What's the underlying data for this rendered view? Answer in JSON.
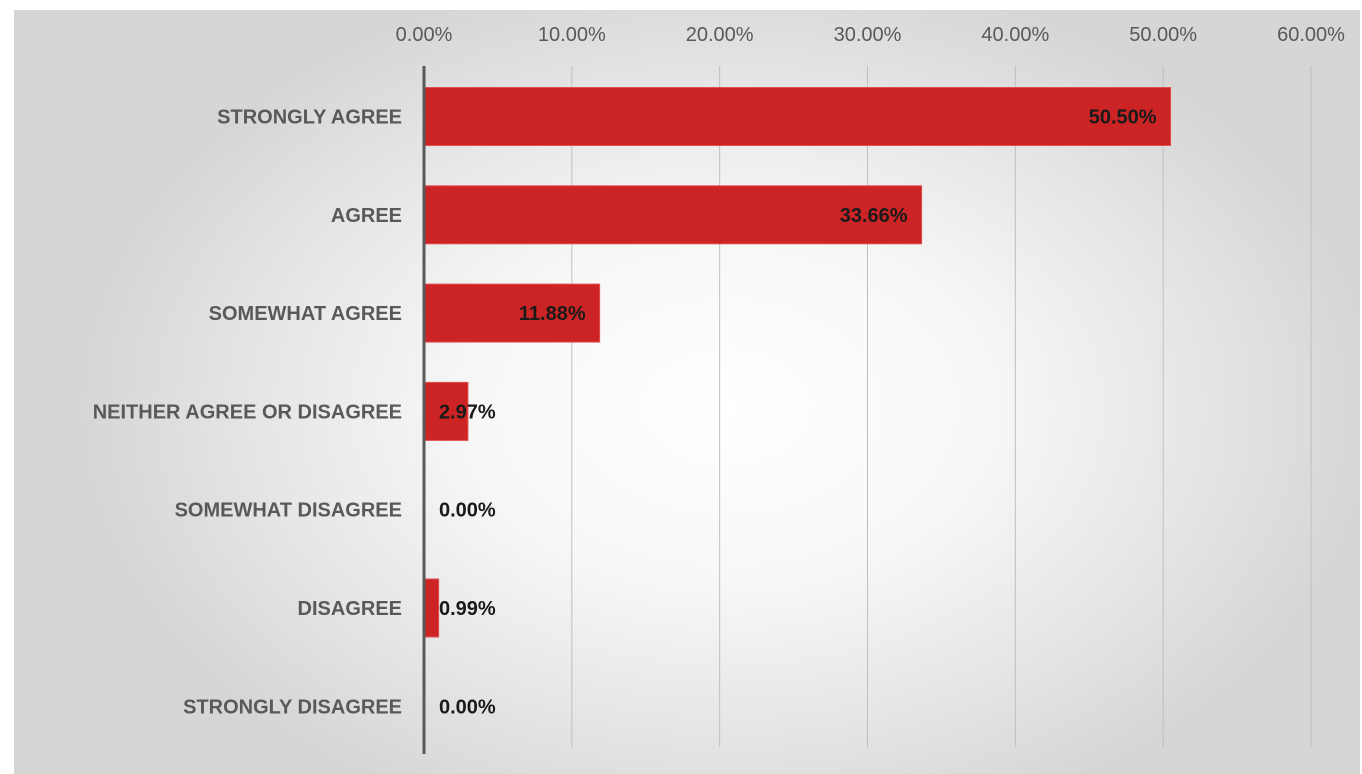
{
  "chart_data": {
    "type": "bar",
    "orientation": "horizontal",
    "categories": [
      "STRONGLY AGREE",
      "AGREE",
      "SOMEWHAT AGREE",
      "NEITHER AGREE OR DISAGREE",
      "SOMEWHAT DISAGREE",
      "DISAGREE",
      "STRONGLY DISAGREE"
    ],
    "values": [
      50.5,
      33.66,
      11.88,
      2.97,
      0.0,
      0.99,
      0.0
    ],
    "data_labels": [
      "50.50%",
      "33.66%",
      "11.88%",
      "2.97%",
      "0.00%",
      "0.99%",
      "0.00%"
    ],
    "x_ticks": [
      0,
      10,
      20,
      30,
      40,
      50,
      60
    ],
    "x_tick_labels": [
      "0.00%",
      "10.00%",
      "20.00%",
      "30.00%",
      "40.00%",
      "50.00%",
      "60.00%"
    ],
    "xlim": [
      0,
      60
    ],
    "x_axis_position": "top",
    "grid": true,
    "legend": false,
    "colors": {
      "bar": "#cc2424",
      "bar_edge": "#e05050",
      "gridline": "#bfbfbf",
      "axis_line": "#595959",
      "tick_text": "#595959",
      "category_text": "#595959",
      "data_label_text": "#1a1a1a"
    }
  }
}
